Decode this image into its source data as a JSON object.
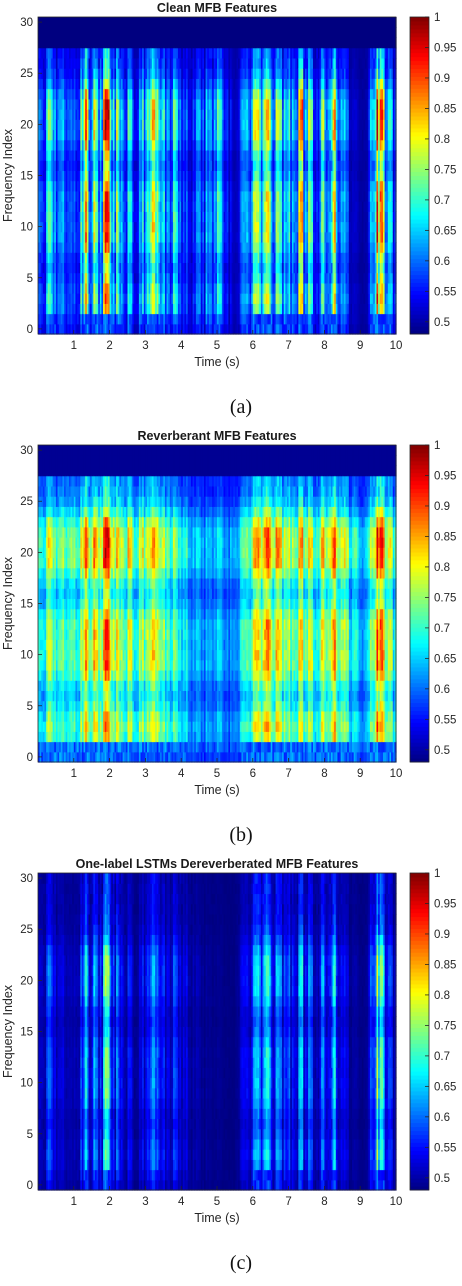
{
  "chart_data": [
    {
      "type": "heatmap",
      "title": "Clean MFB Features",
      "xlabel": "Time (s)",
      "ylabel": "Frequency Index",
      "xlim": [
        0,
        10
      ],
      "ylim": [
        0,
        30
      ],
      "x_ticks": [
        "1",
        "2",
        "3",
        "4",
        "5",
        "6",
        "7",
        "8",
        "9",
        "10"
      ],
      "y_ticks": [
        "0",
        "5",
        "10",
        "15",
        "20",
        "25",
        "30"
      ],
      "colorbar_ticks": [
        "0.5",
        "0.55",
        "0.6",
        "0.65",
        "0.7",
        "0.75",
        "0.8",
        "0.85",
        "0.9",
        "0.95",
        "1"
      ],
      "clim": [
        0.48,
        1
      ],
      "colormap": "jet",
      "caption": "(a)",
      "energy_profile": [
        {
          "t": 0.0,
          "v": 0.62
        },
        {
          "t": 0.3,
          "v": 0.72
        },
        {
          "t": 0.6,
          "v": 0.66
        },
        {
          "t": 1.0,
          "v": 0.58
        },
        {
          "t": 1.35,
          "v": 0.88
        },
        {
          "t": 1.65,
          "v": 0.78
        },
        {
          "t": 1.9,
          "v": 0.92
        },
        {
          "t": 2.2,
          "v": 0.83
        },
        {
          "t": 2.5,
          "v": 0.7
        },
        {
          "t": 2.8,
          "v": 0.62
        },
        {
          "t": 3.1,
          "v": 0.78
        },
        {
          "t": 3.3,
          "v": 0.86
        },
        {
          "t": 3.6,
          "v": 0.68
        },
        {
          "t": 3.9,
          "v": 0.74
        },
        {
          "t": 4.1,
          "v": 0.6
        },
        {
          "t": 4.5,
          "v": 0.62
        },
        {
          "t": 5.0,
          "v": 0.72
        },
        {
          "t": 5.5,
          "v": 0.5
        },
        {
          "t": 5.85,
          "v": 0.72
        },
        {
          "t": 6.3,
          "v": 0.82
        },
        {
          "t": 6.6,
          "v": 0.76
        },
        {
          "t": 7.0,
          "v": 0.7
        },
        {
          "t": 7.4,
          "v": 0.85
        },
        {
          "t": 7.8,
          "v": 0.64
        },
        {
          "t": 8.2,
          "v": 0.92
        },
        {
          "t": 8.5,
          "v": 0.68
        },
        {
          "t": 8.8,
          "v": 0.52
        },
        {
          "t": 9.2,
          "v": 0.5
        },
        {
          "t": 9.5,
          "v": 0.95
        },
        {
          "t": 9.8,
          "v": 0.72
        },
        {
          "t": 10.0,
          "v": 0.58
        }
      ],
      "background": 0.49,
      "clip_top": 28,
      "leak": 0.15
    },
    {
      "type": "heatmap",
      "title": "Reverberant MFB Features",
      "xlabel": "Time (s)",
      "ylabel": "Frequency Index",
      "xlim": [
        0,
        10
      ],
      "ylim": [
        0,
        30
      ],
      "x_ticks": [
        "1",
        "2",
        "3",
        "4",
        "5",
        "6",
        "7",
        "8",
        "9",
        "10"
      ],
      "y_ticks": [
        "0",
        "5",
        "10",
        "15",
        "20",
        "25",
        "30"
      ],
      "colorbar_ticks": [
        "0.5",
        "0.55",
        "0.6",
        "0.65",
        "0.7",
        "0.75",
        "0.8",
        "0.85",
        "0.9",
        "0.95",
        "1"
      ],
      "clim": [
        0.48,
        1
      ],
      "colormap": "jet",
      "caption": "(b)",
      "energy_profile": [
        {
          "t": 0.0,
          "v": 0.7
        },
        {
          "t": 0.3,
          "v": 0.78
        },
        {
          "t": 0.6,
          "v": 0.74
        },
        {
          "t": 1.0,
          "v": 0.72
        },
        {
          "t": 1.35,
          "v": 0.86
        },
        {
          "t": 1.65,
          "v": 0.84
        },
        {
          "t": 1.9,
          "v": 0.9
        },
        {
          "t": 2.2,
          "v": 0.85
        },
        {
          "t": 2.5,
          "v": 0.8
        },
        {
          "t": 2.8,
          "v": 0.76
        },
        {
          "t": 3.1,
          "v": 0.8
        },
        {
          "t": 3.3,
          "v": 0.84
        },
        {
          "t": 3.6,
          "v": 0.76
        },
        {
          "t": 3.9,
          "v": 0.74
        },
        {
          "t": 4.1,
          "v": 0.7
        },
        {
          "t": 4.5,
          "v": 0.64
        },
        {
          "t": 5.0,
          "v": 0.66
        },
        {
          "t": 5.5,
          "v": 0.62
        },
        {
          "t": 5.85,
          "v": 0.76
        },
        {
          "t": 6.3,
          "v": 0.86
        },
        {
          "t": 6.6,
          "v": 0.84
        },
        {
          "t": 7.0,
          "v": 0.78
        },
        {
          "t": 7.4,
          "v": 0.82
        },
        {
          "t": 7.8,
          "v": 0.76
        },
        {
          "t": 8.2,
          "v": 0.9
        },
        {
          "t": 8.5,
          "v": 0.8
        },
        {
          "t": 8.8,
          "v": 0.7
        },
        {
          "t": 9.2,
          "v": 0.66
        },
        {
          "t": 9.5,
          "v": 0.92
        },
        {
          "t": 9.8,
          "v": 0.8
        },
        {
          "t": 10.0,
          "v": 0.7
        }
      ],
      "background": 0.5,
      "clip_top": 28,
      "leak": 0.55
    },
    {
      "type": "heatmap",
      "title": "One-label LSTMs Dereverberated MFB Features",
      "xlabel": "Time (s)",
      "ylabel": "Frequency Index",
      "xlim": [
        0,
        10
      ],
      "ylim": [
        0,
        30
      ],
      "x_ticks": [
        "1",
        "2",
        "3",
        "4",
        "5",
        "6",
        "7",
        "8",
        "9",
        "10"
      ],
      "y_ticks": [
        "0",
        "5",
        "10",
        "15",
        "20",
        "25",
        "30"
      ],
      "colorbar_ticks": [
        "0.5",
        "0.55",
        "0.6",
        "0.65",
        "0.7",
        "0.75",
        "0.8",
        "0.85",
        "0.9",
        "0.95",
        "1"
      ],
      "clim": [
        0.48,
        1
      ],
      "colormap": "jet",
      "caption": "(c)",
      "energy_profile": [
        {
          "t": 0.0,
          "v": 0.52
        },
        {
          "t": 0.3,
          "v": 0.6
        },
        {
          "t": 0.6,
          "v": 0.54
        },
        {
          "t": 1.0,
          "v": 0.5
        },
        {
          "t": 1.35,
          "v": 0.68
        },
        {
          "t": 1.65,
          "v": 0.64
        },
        {
          "t": 1.9,
          "v": 0.74
        },
        {
          "t": 2.2,
          "v": 0.66
        },
        {
          "t": 2.5,
          "v": 0.56
        },
        {
          "t": 2.8,
          "v": 0.52
        },
        {
          "t": 3.1,
          "v": 0.6
        },
        {
          "t": 3.3,
          "v": 0.66
        },
        {
          "t": 3.6,
          "v": 0.56
        },
        {
          "t": 3.9,
          "v": 0.6
        },
        {
          "t": 4.1,
          "v": 0.55
        },
        {
          "t": 4.5,
          "v": 0.5
        },
        {
          "t": 5.0,
          "v": 0.49
        },
        {
          "t": 5.5,
          "v": 0.48
        },
        {
          "t": 5.85,
          "v": 0.58
        },
        {
          "t": 6.3,
          "v": 0.7
        },
        {
          "t": 6.6,
          "v": 0.64
        },
        {
          "t": 7.0,
          "v": 0.6
        },
        {
          "t": 7.4,
          "v": 0.66
        },
        {
          "t": 7.8,
          "v": 0.56
        },
        {
          "t": 8.2,
          "v": 0.74
        },
        {
          "t": 8.5,
          "v": 0.56
        },
        {
          "t": 8.8,
          "v": 0.5
        },
        {
          "t": 9.2,
          "v": 0.49
        },
        {
          "t": 9.5,
          "v": 0.78
        },
        {
          "t": 9.8,
          "v": 0.6
        },
        {
          "t": 10.0,
          "v": 0.52
        }
      ],
      "background": 0.48,
      "clip_top": 31,
      "leak": 0.05
    }
  ]
}
